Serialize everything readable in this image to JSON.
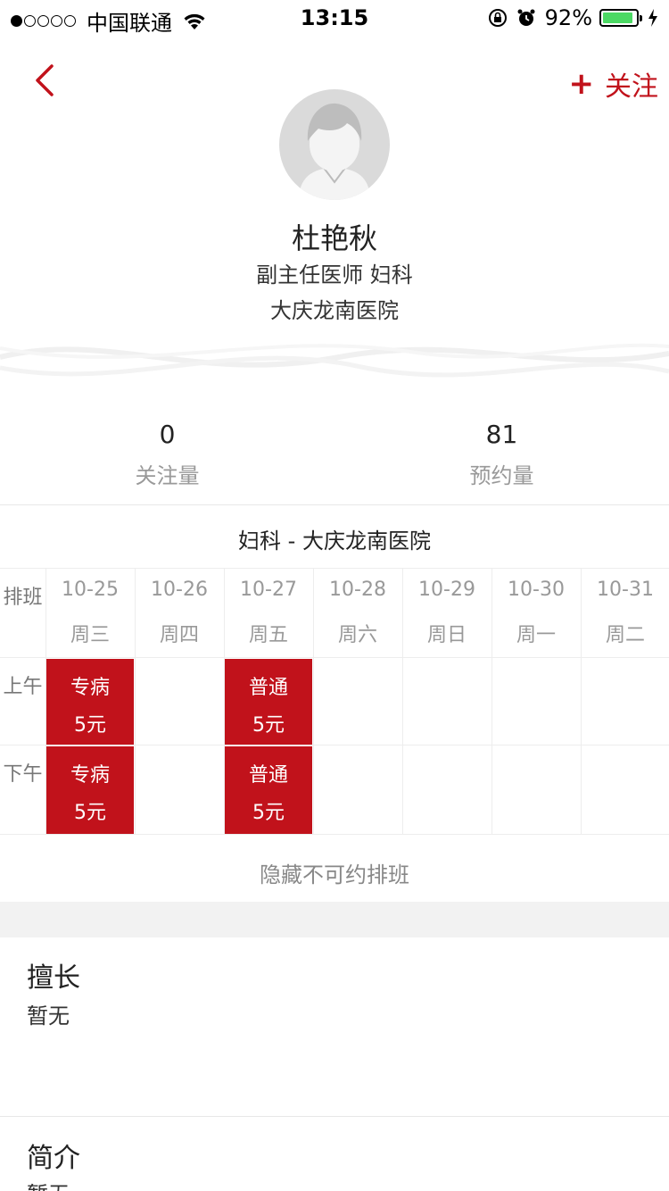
{
  "status_bar": {
    "carrier": "中国联通",
    "time": "13:15",
    "battery_text": "92%",
    "battery_level": 0.92,
    "signal_bars_on": 1,
    "signal_bars_total": 5
  },
  "header": {
    "follow_plus": "+",
    "follow_label": "关注"
  },
  "doctor": {
    "name": "杜艳秋",
    "title": "副主任医师 妇科",
    "hospital": "大庆龙南医院"
  },
  "stats": {
    "followers_count": "0",
    "followers_label": "关注量",
    "appointments_count": "81",
    "appointments_label": "预约量"
  },
  "department_line": "妇科 - 大庆龙南医院",
  "schedule": {
    "corner_label": "排班",
    "morning_label": "上午",
    "afternoon_label": "下午",
    "columns": [
      {
        "date": "10-25",
        "weekday": "周三"
      },
      {
        "date": "10-26",
        "weekday": "周四"
      },
      {
        "date": "10-27",
        "weekday": "周五"
      },
      {
        "date": "10-28",
        "weekday": "周六"
      },
      {
        "date": "10-29",
        "weekday": "周日"
      },
      {
        "date": "10-30",
        "weekday": "周一"
      },
      {
        "date": "10-31",
        "weekday": "周二"
      }
    ],
    "slots": {
      "morning_1025": {
        "type": "专病",
        "price": "5元"
      },
      "morning_1027": {
        "type": "普通",
        "price": "5元"
      },
      "afternoon_1025": {
        "type": "专病",
        "price": "5元"
      },
      "afternoon_1027": {
        "type": "普通",
        "price": "5元"
      }
    },
    "hide_label": "隐藏不可约排班"
  },
  "specialty": {
    "title": "擅长",
    "body": "暂无"
  },
  "intro": {
    "title": "简介",
    "body": "暂无"
  },
  "colors": {
    "accent": "#c1121b",
    "battery": "#4cd964"
  }
}
